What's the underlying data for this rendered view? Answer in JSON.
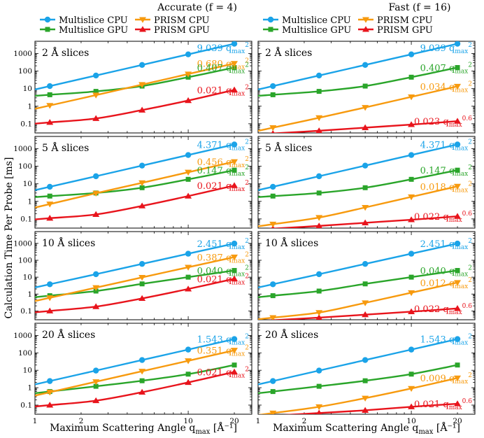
{
  "figure": {
    "ylabel": "Calculation Time Per Probe [ms]",
    "colors": {
      "multislice_cpu": "#1aa3e8",
      "multislice_gpu": "#2aa52a",
      "prism_cpu": "#f79a0e",
      "prism_gpu": "#e8141c"
    }
  },
  "columns": [
    {
      "title": "Accurate (f = 4)",
      "legend": [
        "Multislice CPU",
        "PRISM CPU",
        "Multislice GPU",
        "PRISM GPU"
      ]
    },
    {
      "title": "Fast (f = 16)",
      "legend": [
        "Multislice CPU",
        "PRISM CPU",
        "Multislice GPU",
        "PRISM GPU"
      ]
    }
  ],
  "x_axis": {
    "label": "Maximum Scattering Angle q",
    "label_sub": "max",
    "label_unit": " [Å⁻¹]",
    "tick_labels": [
      "1",
      "2",
      "10",
      "20"
    ]
  },
  "y_tick_labels": [
    "1000",
    "100",
    "10",
    "1",
    "0.1"
  ],
  "chart_data": [
    {
      "type": "line",
      "xscale": "log",
      "yscale": "log",
      "xlim": [
        1,
        26
      ],
      "ylim": [
        0.03,
        5000
      ],
      "panel_label": "2 Å slices",
      "series": [
        {
          "name": "Multislice CPU",
          "x": [
            1.25,
            2.5,
            5.0,
            10.0,
            20.0
          ],
          "y": [
            14,
            56,
            225,
            900,
            3600
          ],
          "fit": "9.039 q",
          "fit_exp": "2"
        },
        {
          "name": "PRISM CPU",
          "x": [
            1.25,
            2.5,
            5.0,
            10.0,
            20.0
          ],
          "y": [
            1.1,
            4.3,
            17,
            68,
            272
          ],
          "fit": "0.680 q",
          "fit_exp": "2"
        },
        {
          "name": "Multislice GPU",
          "x": [
            1.25,
            2.5,
            5.0,
            10.0,
            20.0
          ],
          "y": [
            4.5,
            7,
            14,
            45,
            160
          ],
          "fit": "0.407 q",
          "fit_exp": "2"
        },
        {
          "name": "PRISM GPU",
          "x": [
            1.25,
            2.5,
            5.0,
            10.0,
            20.0
          ],
          "y": [
            0.12,
            0.2,
            0.6,
            2.1,
            8.5
          ],
          "fit": "0.021 q",
          "fit_exp": "2"
        }
      ]
    },
    {
      "type": "line",
      "xscale": "log",
      "yscale": "log",
      "xlim": [
        1,
        26
      ],
      "ylim": [
        0.03,
        5000
      ],
      "panel_label": "2 Å slices",
      "series": [
        {
          "name": "Multislice CPU",
          "x": [
            1.25,
            2.5,
            5.0,
            10.0,
            20.0
          ],
          "y": [
            14,
            56,
            225,
            900,
            3600
          ],
          "fit": "9.039 q",
          "fit_exp": "2"
        },
        {
          "name": "PRISM CPU",
          "x": [
            1.25,
            2.5,
            5.0,
            10.0,
            20.0
          ],
          "y": [
            0.06,
            0.22,
            0.85,
            3.4,
            13.6
          ],
          "fit": "0.034 q",
          "fit_exp": "2"
        },
        {
          "name": "Multislice GPU",
          "x": [
            1.25,
            2.5,
            5.0,
            10.0,
            20.0
          ],
          "y": [
            4.5,
            7,
            14,
            45,
            160
          ],
          "fit": "0.407 q",
          "fit_exp": "2"
        },
        {
          "name": "PRISM GPU",
          "x": [
            1.25,
            2.5,
            5.0,
            10.0,
            20.0
          ],
          "y": [
            0.028,
            0.04,
            0.06,
            0.09,
            0.14
          ],
          "fit": "0.023 q",
          "fit_exp": "0.6"
        }
      ]
    },
    {
      "type": "line",
      "xscale": "log",
      "yscale": "log",
      "xlim": [
        1,
        26
      ],
      "ylim": [
        0.03,
        5000
      ],
      "panel_label": "5 Å slices",
      "series": [
        {
          "name": "Multislice CPU",
          "x": [
            1.25,
            2.5,
            5.0,
            10.0,
            20.0
          ],
          "y": [
            6.8,
            27,
            109,
            437,
            1750
          ],
          "fit": "4.371 q",
          "fit_exp": "2"
        },
        {
          "name": "PRISM CPU",
          "x": [
            1.25,
            2.5,
            5.0,
            10.0,
            20.0
          ],
          "y": [
            0.7,
            2.9,
            11.4,
            45.6,
            182
          ],
          "fit": "0.456 q",
          "fit_exp": "2"
        },
        {
          "name": "Multislice GPU",
          "x": [
            1.25,
            2.5,
            5.0,
            10.0,
            20.0
          ],
          "y": [
            2,
            3,
            6,
            18,
            60
          ],
          "fit": "0.147 q",
          "fit_exp": "2"
        },
        {
          "name": "PRISM GPU",
          "x": [
            1.25,
            2.5,
            5.0,
            10.0,
            20.0
          ],
          "y": [
            0.11,
            0.18,
            0.55,
            2.0,
            8.0
          ],
          "fit": "0.021 q",
          "fit_exp": "2"
        }
      ]
    },
    {
      "type": "line",
      "xscale": "log",
      "yscale": "log",
      "xlim": [
        1,
        26
      ],
      "ylim": [
        0.03,
        5000
      ],
      "panel_label": "5 Å slices",
      "series": [
        {
          "name": "Multislice CPU",
          "x": [
            1.25,
            2.5,
            5.0,
            10.0,
            20.0
          ],
          "y": [
            6.8,
            27,
            109,
            437,
            1750
          ],
          "fit": "4.371 q",
          "fit_exp": "2"
        },
        {
          "name": "PRISM CPU",
          "x": [
            1.25,
            2.5,
            5.0,
            10.0,
            20.0
          ],
          "y": [
            0.05,
            0.12,
            0.45,
            1.8,
            7.2
          ],
          "fit": "0.018 q",
          "fit_exp": "2"
        },
        {
          "name": "Multislice GPU",
          "x": [
            1.25,
            2.5,
            5.0,
            10.0,
            20.0
          ],
          "y": [
            2,
            3,
            6,
            18,
            60
          ],
          "fit": "0.147 q",
          "fit_exp": "2"
        },
        {
          "name": "PRISM GPU",
          "x": [
            1.25,
            2.5,
            5.0,
            10.0,
            20.0
          ],
          "y": [
            0.028,
            0.04,
            0.06,
            0.09,
            0.14
          ],
          "fit": "0.022 q",
          "fit_exp": "0.6"
        }
      ]
    },
    {
      "type": "line",
      "xscale": "log",
      "yscale": "log",
      "xlim": [
        1,
        26
      ],
      "ylim": [
        0.03,
        5000
      ],
      "panel_label": "10 Å slices",
      "series": [
        {
          "name": "Multislice CPU",
          "x": [
            1.25,
            2.5,
            5.0,
            10.0,
            20.0
          ],
          "y": [
            3.8,
            15,
            61,
            245,
            980
          ],
          "fit": "2.451 q",
          "fit_exp": "2"
        },
        {
          "name": "PRISM CPU",
          "x": [
            1.25,
            2.5,
            5.0,
            10.0,
            20.0
          ],
          "y": [
            0.6,
            2.4,
            9.7,
            38.7,
            155
          ],
          "fit": "0.387 q",
          "fit_exp": "2"
        },
        {
          "name": "Multislice GPU",
          "x": [
            1.25,
            2.5,
            5.0,
            10.0,
            20.0
          ],
          "y": [
            0.8,
            1.5,
            4,
            10,
            25
          ],
          "fit": "0.040 q",
          "fit_exp": "2"
        },
        {
          "name": "PRISM GPU",
          "x": [
            1.25,
            2.5,
            5.0,
            10.0,
            20.0
          ],
          "y": [
            0.1,
            0.18,
            0.55,
            2.0,
            8.0
          ],
          "fit": "0.021 q",
          "fit_exp": "2"
        }
      ]
    },
    {
      "type": "line",
      "xscale": "log",
      "yscale": "log",
      "xlim": [
        1,
        26
      ],
      "ylim": [
        0.03,
        5000
      ],
      "panel_label": "10 Å slices",
      "series": [
        {
          "name": "Multislice CPU",
          "x": [
            1.25,
            2.5,
            5.0,
            10.0,
            20.0
          ],
          "y": [
            3.8,
            15,
            61,
            245,
            980
          ],
          "fit": "2.451 q",
          "fit_exp": "2"
        },
        {
          "name": "PRISM CPU",
          "x": [
            1.25,
            2.5,
            5.0,
            10.0,
            20.0
          ],
          "y": [
            0.04,
            0.08,
            0.3,
            1.2,
            4.8
          ],
          "fit": "0.012 q",
          "fit_exp": "2"
        },
        {
          "name": "Multislice GPU",
          "x": [
            1.25,
            2.5,
            5.0,
            10.0,
            20.0
          ],
          "y": [
            0.8,
            1.5,
            4,
            10,
            25
          ],
          "fit": "0.040 q",
          "fit_exp": "2"
        },
        {
          "name": "PRISM GPU",
          "x": [
            1.25,
            2.5,
            5.0,
            10.0,
            20.0
          ],
          "y": [
            0.028,
            0.04,
            0.06,
            0.09,
            0.14
          ],
          "fit": "0.022 q",
          "fit_exp": "0.6"
        }
      ]
    },
    {
      "type": "line",
      "xscale": "log",
      "yscale": "log",
      "xlim": [
        1,
        26
      ],
      "ylim": [
        0.03,
        5000
      ],
      "panel_label": "20 Å slices",
      "series": [
        {
          "name": "Multislice CPU",
          "x": [
            1.25,
            2.5,
            5.0,
            10.0,
            20.0
          ],
          "y": [
            2.4,
            9.6,
            38.6,
            154,
            617
          ],
          "fit": "1.543 q",
          "fit_exp": "2"
        },
        {
          "name": "PRISM CPU",
          "x": [
            1.25,
            2.5,
            5.0,
            10.0,
            20.0
          ],
          "y": [
            0.55,
            2.2,
            8.8,
            35,
            140
          ],
          "fit": "0.351 q",
          "fit_exp": "2"
        },
        {
          "name": "Multislice GPU",
          "x": [
            1.25,
            2.5,
            5.0,
            10.0,
            20.0
          ],
          "y": [
            0.6,
            1.2,
            2.5,
            6,
            20
          ],
          "fit": "",
          "fit_exp": ""
        },
        {
          "name": "PRISM GPU",
          "x": [
            1.25,
            2.5,
            5.0,
            10.0,
            20.0
          ],
          "y": [
            0.1,
            0.18,
            0.55,
            2.0,
            8.0
          ],
          "fit": "0.021 q",
          "fit_exp": "2"
        }
      ]
    },
    {
      "type": "line",
      "xscale": "log",
      "yscale": "log",
      "xlim": [
        1,
        26
      ],
      "ylim": [
        0.03,
        5000
      ],
      "panel_label": "20 Å slices",
      "series": [
        {
          "name": "Multislice CPU",
          "x": [
            1.25,
            2.5,
            5.0,
            10.0,
            20.0
          ],
          "y": [
            2.4,
            9.6,
            38.6,
            154,
            617
          ],
          "fit": "1.543 q",
          "fit_exp": "2"
        },
        {
          "name": "PRISM CPU",
          "x": [
            1.25,
            2.5,
            5.0,
            10.0,
            20.0
          ],
          "y": [
            0.035,
            0.08,
            0.25,
            0.9,
            3.6
          ],
          "fit": "0.009 q",
          "fit_exp": "2"
        },
        {
          "name": "Multislice GPU",
          "x": [
            1.25,
            2.5,
            5.0,
            10.0,
            20.0
          ],
          "y": [
            0.6,
            1.2,
            2.5,
            6,
            20
          ],
          "fit": "",
          "fit_exp": ""
        },
        {
          "name": "PRISM GPU",
          "x": [
            1.25,
            2.5,
            5.0,
            10.0,
            20.0
          ],
          "y": [
            0.025,
            0.035,
            0.05,
            0.08,
            0.12
          ],
          "fit": "0.021 q",
          "fit_exp": "0.6"
        }
      ]
    }
  ]
}
